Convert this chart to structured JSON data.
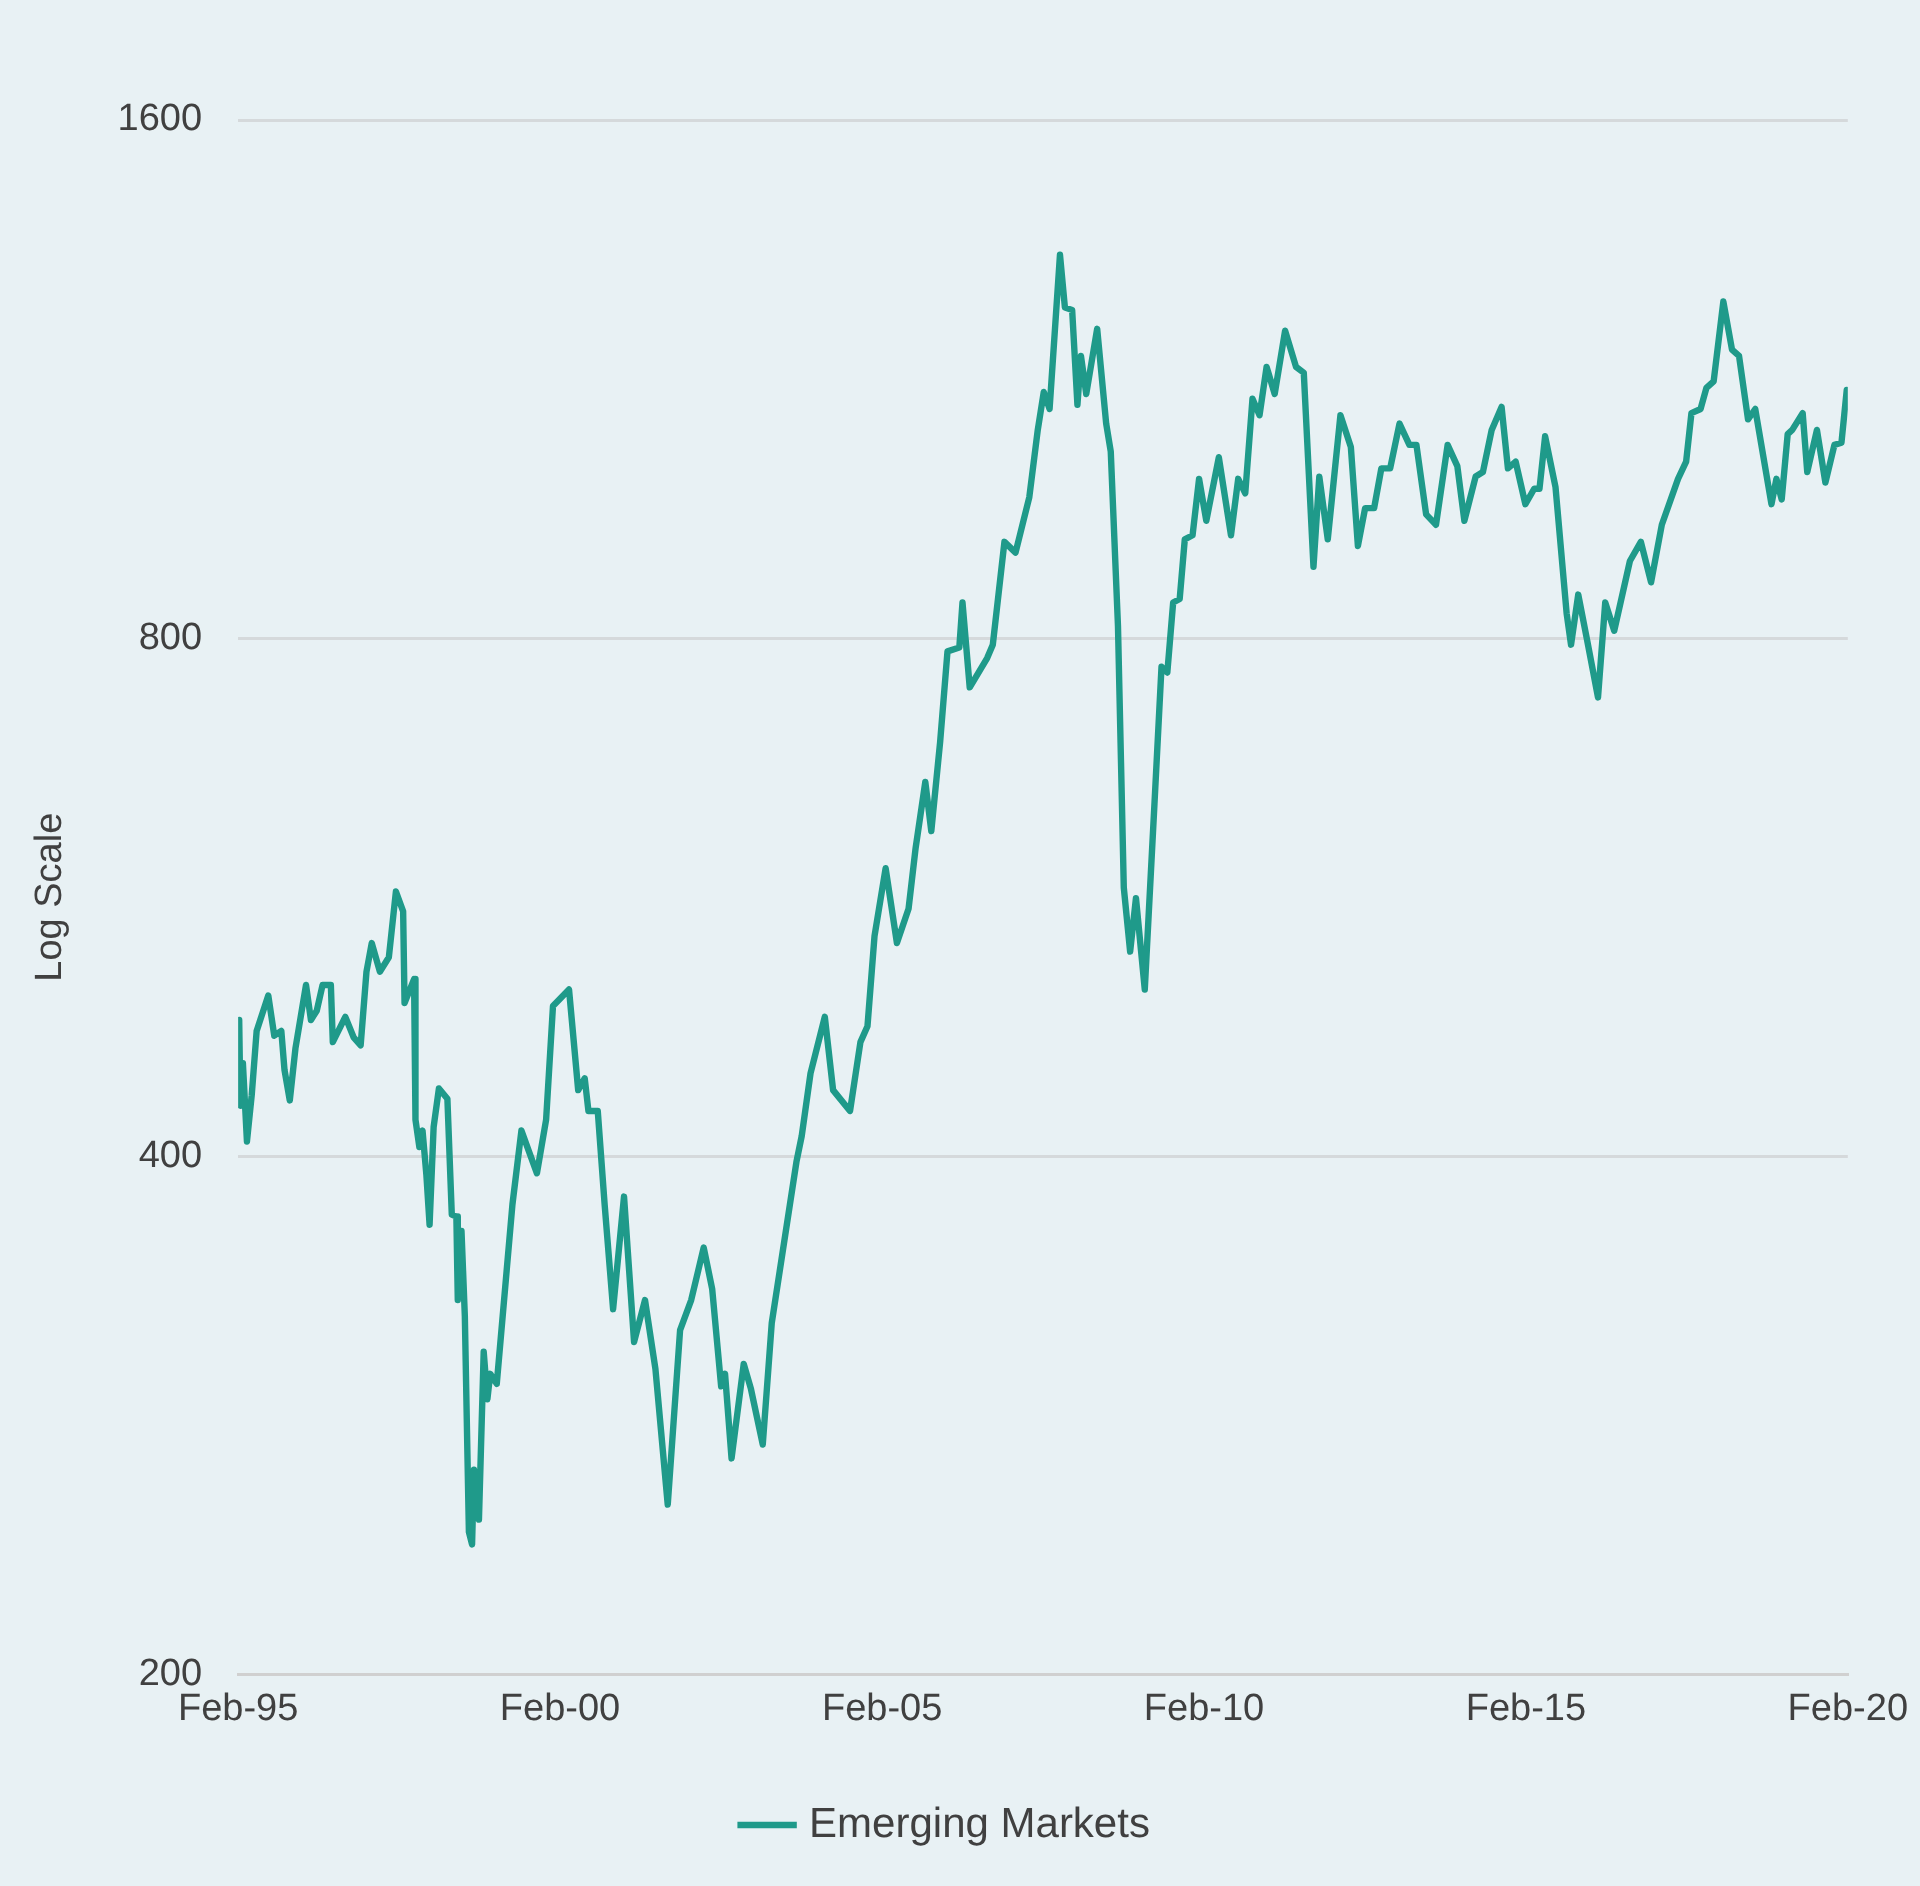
{
  "chart_data": {
    "type": "line",
    "ylabel": "Log Scale",
    "log": "y",
    "grid": "y",
    "legend": "bottom",
    "marker": "none",
    "line_style": "solid",
    "ylim": [
      200,
      1600
    ],
    "yticks": [
      200,
      400,
      800,
      1600
    ],
    "xlim": [
      "1995-02",
      "2020-02"
    ],
    "xticks": [
      {
        "value": "1995-02",
        "label": "Feb-95"
      },
      {
        "value": "2000-02",
        "label": "Feb-00"
      },
      {
        "value": "2005-02",
        "label": "Feb-05"
      },
      {
        "value": "2010-02",
        "label": "Feb-10"
      },
      {
        "value": "2015-02",
        "label": "Feb-15"
      },
      {
        "value": "2020-02",
        "label": "Feb-20"
      }
    ],
    "x": [
      "1995-02-07",
      "1995-02-14",
      "1995-02-28",
      "1995-03-23",
      "1995-04-19",
      "1995-05-17",
      "1995-07-22",
      "1995-08-25",
      "1995-10-04",
      "1995-10-22",
      "1995-11-21",
      "1995-12-23",
      "1996-02-21",
      "1996-03-20",
      "1996-04-22",
      "1996-05-25",
      "1996-07-11",
      "1996-07-22",
      "1996-10-01",
      "1996-11-17",
      "1996-12-27",
      "1997-01-29",
      "1997-02-28",
      "1997-04-15",
      "1997-06-05",
      "1997-07-15",
      "1997-08-25",
      "1997-09-02",
      "1997-10-26",
      "1997-11-03",
      "1997-11-25",
      "1997-12-13",
      "1998-01-04",
      "1998-01-22",
      "1998-02-14",
      "1998-03-16",
      "1998-05-03",
      "1998-05-28",
      "1998-06-23",
      "1998-07-01",
      "1998-07-22",
      "1998-08-10",
      "1998-09-02",
      "1998-09-20",
      "1998-10-01",
      "1998-10-29",
      "1998-11-25",
      "1998-12-16",
      "1999-01-01",
      "1999-02-07",
      "1999-05-07",
      "1999-06-27",
      "1999-08-07",
      "1999-09-23",
      "1999-11-14",
      "1999-12-23",
      "2000-03-23",
      "2000-05-14",
      "2000-06-20",
      "2000-07-11",
      "2000-09-02",
      "2000-10-11",
      "2000-11-28",
      "2001-01-29",
      "2001-03-27",
      "2001-05-28",
      "2001-07-26",
      "2001-10-04",
      "2001-12-13",
      "2002-02-14",
      "2002-04-26",
      "2002-06-13",
      "2002-08-03",
      "2002-08-25",
      "2002-10-01",
      "2002-12-09",
      "2003-01-19",
      "2003-03-27",
      "2003-05-17",
      "2003-08-28",
      "2003-10-04",
      "2003-11-03",
      "2003-12-23",
      "2004-03-13",
      "2004-04-29",
      "2004-08-03",
      "2004-10-01",
      "2004-11-10",
      "2004-12-20",
      "2005-02-21",
      "2005-04-26",
      "2005-07-01",
      "2005-08-10",
      "2005-10-04",
      "2005-11-07",
      "2005-12-27",
      "2006-02-07",
      "2006-04-15",
      "2006-05-03",
      "2006-06-13",
      "2006-09-20",
      "2006-10-22",
      "2006-12-27",
      "2007-02-28",
      "2007-05-17",
      "2007-07-04",
      "2007-08-07",
      "2007-09-09",
      "2007-11-07",
      "2007-12-05",
      "2008-01-15",
      "2008-02-14",
      "2008-03-05",
      "2008-04-04",
      "2008-06-05",
      "2008-07-26",
      "2008-08-21",
      "2008-10-01",
      "2008-11-03",
      "2008-12-09",
      "2009-01-11",
      "2009-03-02",
      "2009-04-26",
      "2009-06-05",
      "2009-07-08",
      "2009-08-10",
      "2009-09-16",
      "2009-10-15",
      "2009-11-28",
      "2010-01-04",
      "2010-02-14",
      "2010-04-26",
      "2010-07-04",
      "2010-08-14",
      "2010-09-23",
      "2010-11-03",
      "2010-12-13",
      "2011-01-22",
      "2011-03-09",
      "2011-05-07",
      "2011-07-08",
      "2011-08-21",
      "2011-10-15",
      "2011-11-17",
      "2012-01-04",
      "2012-03-16",
      "2012-05-14",
      "2012-06-23",
      "2012-08-03",
      "2012-09-23",
      "2012-11-03",
      "2012-12-23",
      "2013-02-14",
      "2013-04-11",
      "2013-05-21",
      "2013-07-15",
      "2013-09-09",
      "2013-11-14",
      "2014-01-08",
      "2014-02-17",
      "2014-04-22",
      "2014-06-02",
      "2014-07-22",
      "2014-09-16",
      "2014-10-22",
      "2014-12-05",
      "2015-01-29",
      "2015-03-20",
      "2015-04-19",
      "2015-05-21",
      "2015-07-19",
      "2015-09-20",
      "2015-10-15",
      "2015-11-25",
      "2016-01-15",
      "2016-03-16",
      "2016-04-26",
      "2016-06-16",
      "2016-09-13",
      "2016-11-14",
      "2017-01-11",
      "2017-03-13",
      "2017-06-13",
      "2017-07-29",
      "2017-08-28",
      "2017-10-19",
      "2017-11-21",
      "2018-01-01",
      "2018-02-25",
      "2018-04-15",
      "2018-05-25",
      "2018-07-15",
      "2018-08-25",
      "2018-11-25",
      "2018-12-23",
      "2019-01-22",
      "2019-02-25",
      "2019-03-23",
      "2019-05-21",
      "2019-06-16",
      "2019-08-10",
      "2019-09-27",
      "2019-11-17",
      "2019-12-27",
      "2020-01-26"
    ],
    "series": [
      {
        "name": "Emerging Markets",
        "color": "#1f9a8a",
        "values": [
          480,
          428,
          453,
          408,
          434,
          473,
          496,
          470,
          473,
          449,
          431,
          462,
          503,
          480,
          486,
          503,
          503,
          466,
          482,
          469,
          464,
          512,
          532,
          512,
          522,
          570,
          555,
          491,
          507,
          420,
          405,
          414,
          390,
          365,
          416,
          438,
          432,
          370,
          369,
          330,
          362,
          323,
          242,
          238,
          263,
          246,
          308,
          289,
          299,
          295,
          375,
          414,
          403,
          391,
          420,
          489,
          500,
          437,
          444,
          425,
          425,
          375,
          326,
          379,
          312,
          330,
          301,
          251,
          317,
          330,
          354,
          335,
          294,
          299,
          267,
          303,
          293,
          272,
          320,
          375,
          397,
          411,
          447,
          482,
          437,
          425,
          466,
          476,
          537,
          588,
          532,
          557,
          604,
          660,
          618,
          696,
          786,
          790,
          839,
          749,
          779,
          793,
          910,
          897,
          966,
          1057,
          1112,
          1087,
          1336,
          1245,
          1241,
          1093,
          1167,
          1109,
          1210,
          1066,
          1027,
          813,
          573,
          526,
          565,
          500,
          641,
          770,
          764,
          839,
          843,
          913,
          918,
          990,
          936,
          1019,
          918,
          990,
          971,
          1102,
          1078,
          1150,
          1109,
          1207,
          1150,
          1141,
          880,
          993,
          913,
          1078,
          1033,
          905,
          952,
          952,
          1004,
          1004,
          1066,
          1036,
          1036,
          944,
          931,
          1036,
          1007,
          936,
          993,
          999,
          1057,
          1090,
          1004,
          1013,
          957,
          977,
          977,
          1048,
          979,
          827,
          793,
          848,
          797,
          739,
          839,
          808,
          887,
          910,
          862,
          931,
          990,
          1013,
          1081,
          1087,
          1118,
          1128,
          1255,
          1177,
          1167,
          1072,
          1087,
          957,
          990,
          963,
          1051,
          1057,
          1081,
          999,
          1057,
          985,
          1036,
          1039,
          1115
        ]
      }
    ]
  }
}
